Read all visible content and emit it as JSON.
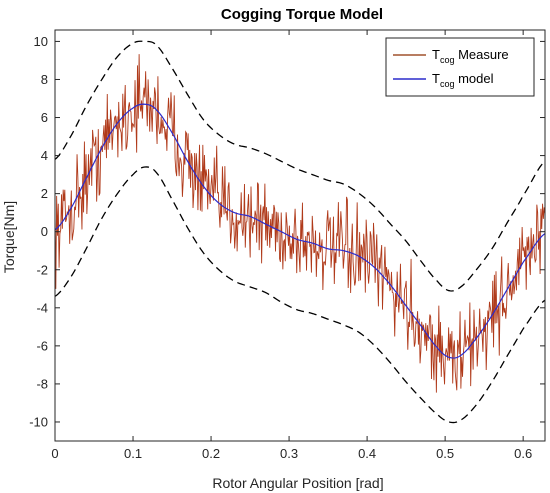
{
  "chart_data": {
    "type": "line",
    "title": "Cogging Torque Model",
    "xlabel": "Rotor Angular Position [rad]",
    "ylabel": "Torque[Nm]",
    "xlim": [
      0,
      0.628
    ],
    "ylim": [
      -11,
      10.6
    ],
    "x_ticks": [
      0,
      0.1,
      0.2,
      0.3,
      0.4,
      0.5,
      0.6
    ],
    "x_tick_labels": [
      "0",
      "0.1",
      "0.2",
      "0.3",
      "0.4",
      "0.5",
      "0.6"
    ],
    "y_ticks": [
      -10,
      -8,
      -6,
      -4,
      -2,
      0,
      2,
      4,
      6,
      8,
      10
    ],
    "y_tick_labels": [
      "-10",
      "-8",
      "-6",
      "-4",
      "-2",
      "0",
      "2",
      "4",
      "6",
      "8",
      "10"
    ],
    "grid": false,
    "legend_position": "top-right",
    "legend": [
      {
        "main": "T",
        "sub": "cog",
        "rest": " Measure",
        "color": "#a0522d"
      },
      {
        "main": "T",
        "sub": "cog",
        "rest": " model",
        "color": "#2b2bcc"
      }
    ],
    "series": [
      {
        "name": "Tcog model",
        "color": "#2b2bcc",
        "style": "solid",
        "x": [
          0,
          0.02,
          0.04,
          0.06,
          0.08,
          0.1,
          0.115,
          0.13,
          0.15,
          0.17,
          0.19,
          0.21,
          0.23,
          0.25,
          0.27,
          0.29,
          0.31,
          0.33,
          0.35,
          0.37,
          0.39,
          0.41,
          0.43,
          0.45,
          0.47,
          0.49,
          0.505,
          0.52,
          0.54,
          0.56,
          0.58,
          0.6,
          0.628
        ],
        "y": [
          0.1,
          1.2,
          2.8,
          4.4,
          5.7,
          6.5,
          6.7,
          6.4,
          5.2,
          3.7,
          2.4,
          1.5,
          1.0,
          0.8,
          0.4,
          0.0,
          -0.4,
          -0.6,
          -0.9,
          -1.0,
          -1.3,
          -1.9,
          -2.8,
          -3.9,
          -5.0,
          -6.1,
          -6.6,
          -6.5,
          -5.6,
          -4.4,
          -3.0,
          -1.6,
          -0.1
        ]
      },
      {
        "name": "upper band",
        "color": "#000000",
        "style": "dashed",
        "x": [
          0,
          0.02,
          0.04,
          0.06,
          0.08,
          0.1,
          0.115,
          0.13,
          0.15,
          0.17,
          0.19,
          0.21,
          0.23,
          0.25,
          0.27,
          0.29,
          0.31,
          0.33,
          0.35,
          0.37,
          0.39,
          0.41,
          0.43,
          0.45,
          0.47,
          0.49,
          0.505,
          0.52,
          0.54,
          0.56,
          0.58,
          0.6,
          0.628
        ],
        "y": [
          3.8,
          5.0,
          6.6,
          8.0,
          9.2,
          9.9,
          10.0,
          9.8,
          8.6,
          7.2,
          5.9,
          5.1,
          4.6,
          4.4,
          4.1,
          3.7,
          3.3,
          3.0,
          2.7,
          2.5,
          2.0,
          1.3,
          0.4,
          -0.5,
          -1.6,
          -2.6,
          -3.1,
          -2.9,
          -2.0,
          -0.9,
          0.5,
          1.9,
          3.7
        ]
      },
      {
        "name": "lower band",
        "color": "#000000",
        "style": "dashed",
        "x": [
          0,
          0.02,
          0.04,
          0.06,
          0.08,
          0.1,
          0.115,
          0.13,
          0.15,
          0.17,
          0.19,
          0.21,
          0.23,
          0.25,
          0.27,
          0.29,
          0.31,
          0.33,
          0.35,
          0.37,
          0.39,
          0.41,
          0.43,
          0.45,
          0.47,
          0.49,
          0.505,
          0.52,
          0.54,
          0.56,
          0.58,
          0.6,
          0.628
        ],
        "y": [
          -3.4,
          -2.4,
          -0.9,
          0.7,
          2.0,
          3.0,
          3.4,
          3.1,
          1.7,
          0.2,
          -1.1,
          -2.0,
          -2.6,
          -2.9,
          -3.2,
          -3.7,
          -4.1,
          -4.3,
          -4.6,
          -4.9,
          -5.3,
          -6.0,
          -6.9,
          -7.9,
          -8.8,
          -9.6,
          -10.0,
          -9.9,
          -9.1,
          -7.9,
          -6.5,
          -5.1,
          -3.6
        ]
      }
    ],
    "measure_series": {
      "name": "Tcog Measure",
      "color": "#b03a1a",
      "style": "noisy",
      "noise_amplitude_nm": 1.6,
      "samples": 600
    }
  }
}
